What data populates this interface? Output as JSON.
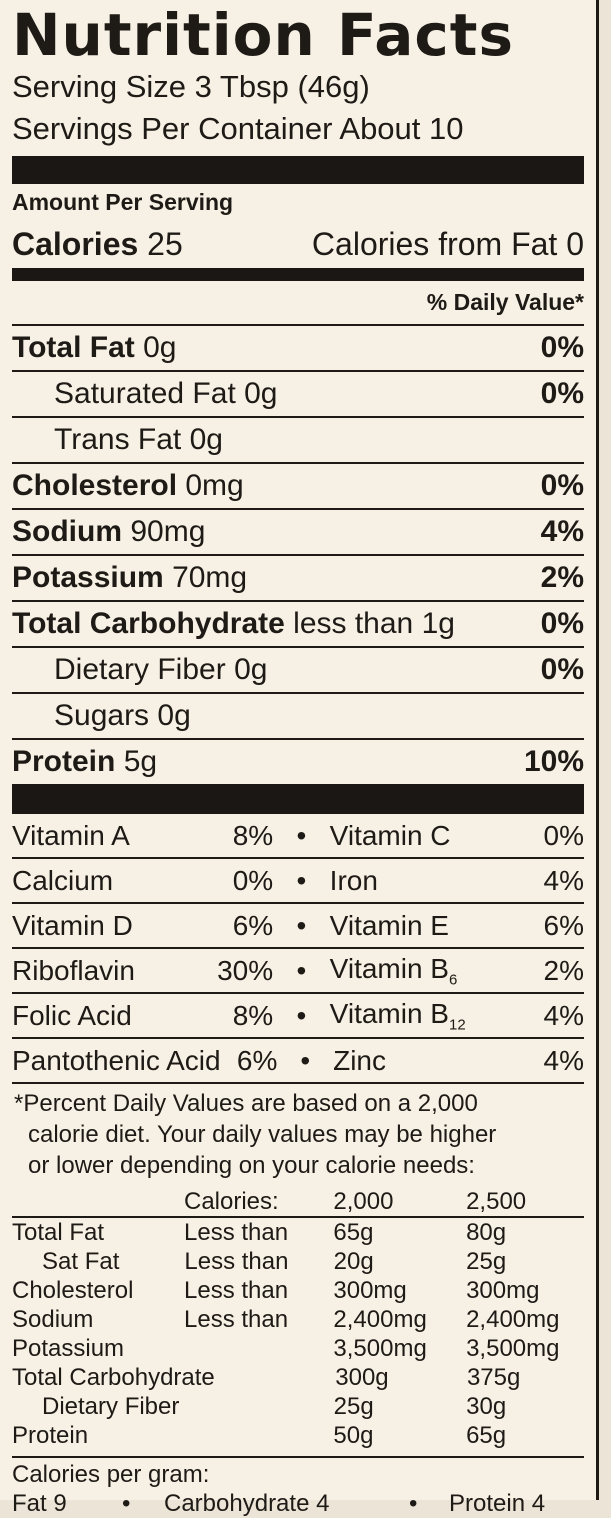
{
  "title": "Nutrition Facts",
  "serving_size": "Serving Size 3 Tbsp (46g)",
  "servings_per_container": "Servings Per Container About 10",
  "amount_per_serving": "Amount Per Serving",
  "calories": {
    "label": "Calories",
    "value": "25",
    "from_fat": "Calories from Fat 0"
  },
  "daily_value_header": "% Daily Value*",
  "nutrients": [
    {
      "name": "Total Fat",
      "amount": "0g",
      "pct": "0%"
    },
    {
      "name": "Saturated Fat",
      "amount": "0g",
      "pct": "0%"
    },
    {
      "name": "Trans Fat",
      "amount": "0g",
      "pct": ""
    },
    {
      "name": "Cholesterol",
      "amount": "0mg",
      "pct": "0%"
    },
    {
      "name": "Sodium",
      "amount": "90mg",
      "pct": "4%"
    },
    {
      "name": "Potassium",
      "amount": "70mg",
      "pct": "2%"
    },
    {
      "name": "Total Carbohydrate",
      "amount": "less than 1g",
      "pct": "0%"
    },
    {
      "name": "Dietary Fiber",
      "amount": "0g",
      "pct": "0%"
    },
    {
      "name": "Sugars",
      "amount": "0g",
      "pct": ""
    },
    {
      "name": "Protein",
      "amount": "5g",
      "pct": "10%"
    }
  ],
  "vitamins": [
    {
      "left": "Vitamin A",
      "left_pct": "8%",
      "right": "Vitamin C",
      "right_sub": "",
      "right_pct": "0%"
    },
    {
      "left": "Calcium",
      "left_pct": "0%",
      "right": "Iron",
      "right_sub": "",
      "right_pct": "4%"
    },
    {
      "left": "Vitamin D",
      "left_pct": "6%",
      "right": "Vitamin E",
      "right_sub": "",
      "right_pct": "6%"
    },
    {
      "left": "Riboflavin",
      "left_pct": "30%",
      "right": "Vitamin B",
      "right_sub": "6",
      "right_pct": "2%"
    },
    {
      "left": "Folic Acid",
      "left_pct": "8%",
      "right": "Vitamin B",
      "right_sub": "12",
      "right_pct": "4%"
    },
    {
      "left": "Pantothenic Acid",
      "left_pct": "6%",
      "right": "Zinc",
      "right_sub": "",
      "right_pct": "4%"
    }
  ],
  "bullet": "•",
  "footnote": [
    "*Percent Daily Values are based on a 2,000",
    "calorie diet. Your daily values may be higher",
    "or lower depending on your calorie needs:"
  ],
  "footnote_table": {
    "header": [
      "",
      "Calories:",
      "2,000",
      "2,500"
    ],
    "rows": [
      [
        "Total Fat",
        "Less than",
        "65g",
        "80g"
      ],
      [
        "Sat Fat",
        "Less than",
        "20g",
        "25g"
      ],
      [
        "Cholesterol",
        "Less than",
        "300mg",
        "300mg"
      ],
      [
        "Sodium",
        "Less than",
        "2,400mg",
        "2,400mg"
      ],
      [
        "Potassium",
        "",
        "3,500mg",
        "3,500mg"
      ],
      [
        "Total Carbohydrate",
        "",
        "300g",
        "375g"
      ],
      [
        "Dietary Fiber",
        "",
        "25g",
        "30g"
      ],
      [
        "Protein",
        "",
        "50g",
        "65g"
      ]
    ]
  },
  "calories_per_gram": {
    "label": "Calories per gram:",
    "fat": "Fat 9",
    "carb": "Carbohydrate 4",
    "protein": "Protein 4"
  }
}
